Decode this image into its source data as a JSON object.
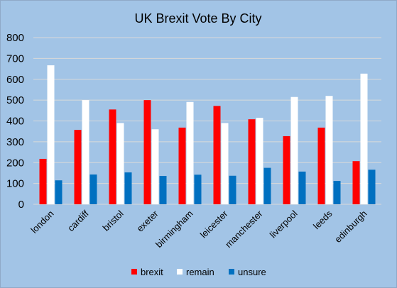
{
  "chart_data": {
    "type": "bar",
    "title": "UK Brexit Vote By City",
    "xlabel": "",
    "ylabel": "",
    "ylim": [
      0,
      800
    ],
    "yticks": [
      0,
      100,
      200,
      300,
      400,
      500,
      600,
      700,
      800
    ],
    "grid": true,
    "legend": "bottom",
    "background": "#a2c4e6",
    "categories": [
      "london",
      "cardiff",
      "bristol",
      "exeter",
      "birmingham",
      "leicester",
      "manchester",
      "liverpool",
      "leeds",
      "edinburgh"
    ],
    "series": [
      {
        "name": "brexit",
        "color": "#ff0000",
        "values": [
          218,
          357,
          455,
          500,
          368,
          472,
          408,
          327,
          368,
          207
        ]
      },
      {
        "name": "remain",
        "color": "#ffffff",
        "values": [
          667,
          500,
          390,
          360,
          491,
          390,
          415,
          515,
          520,
          627
        ]
      },
      {
        "name": "unsure",
        "color": "#0070c0",
        "values": [
          115,
          143,
          153,
          136,
          142,
          137,
          175,
          157,
          112,
          166
        ]
      }
    ]
  }
}
